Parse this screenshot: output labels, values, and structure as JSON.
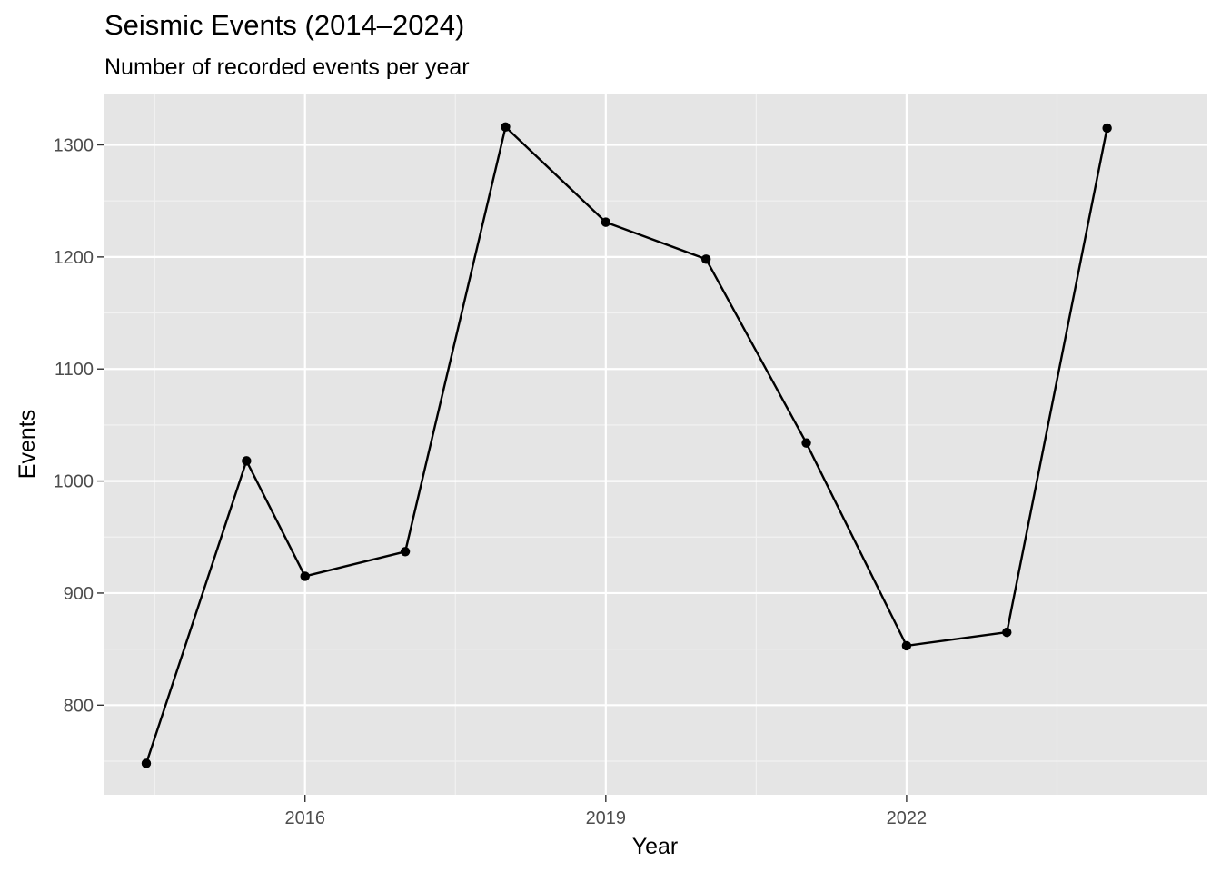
{
  "chart_data": {
    "type": "line",
    "title": "Seismic Events (2014–2024)",
    "subtitle": "Number of recorded events per year",
    "xlabel": "Year",
    "ylabel": "Events",
    "xlim": [
      2014.0,
      2025.0
    ],
    "ylim": [
      720,
      1345
    ],
    "x_ticks": [
      "2016",
      "2019",
      "2022"
    ],
    "y_ticks": [
      "800",
      "900",
      "1000",
      "1100",
      "1200",
      "1300"
    ],
    "grid": true,
    "legend": "none",
    "series": [
      {
        "values": [
          {
            "x": "2014-06",
            "y": 748
          },
          {
            "x": "2015-06",
            "y": 1018
          },
          {
            "x": "2016-01",
            "y": 915
          },
          {
            "x": "2017-01",
            "y": 937
          },
          {
            "x": "2018-01",
            "y": 1316
          },
          {
            "x": "2019-01",
            "y": 1231
          },
          {
            "x": "2020-01",
            "y": 1198
          },
          {
            "x": "2021-01",
            "y": 1034
          },
          {
            "x": "2022-01",
            "y": 853
          },
          {
            "x": "2023-01",
            "y": 865
          },
          {
            "x": "2024-01",
            "y": 1315
          }
        ]
      }
    ],
    "colors": {
      "panel_background": "#e5e5e5",
      "grid_major": "#ffffff",
      "grid_minor": "#f2f2f2",
      "line": "#000000",
      "point": "#000000",
      "text": "#000000",
      "tick_text": "#4d4d4d"
    }
  }
}
